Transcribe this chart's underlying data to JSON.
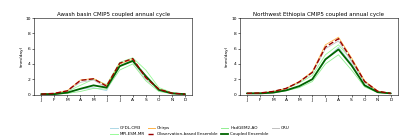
{
  "title_left": "Awash basin CMIP5 coupled annual cycle",
  "title_right": "Northwest Ethiopia CMIP5 coupled annual cycle",
  "ylabel": "(mm/day)",
  "months": [
    "J",
    "F",
    "M",
    "A",
    "M",
    "J",
    "J",
    "A",
    "S",
    "O",
    "N",
    "D"
  ],
  "ylim": [
    0,
    10
  ],
  "yticks": [
    0,
    2,
    4,
    6,
    8,
    10
  ],
  "awash": {
    "GFDL_CM3": [
      0.05,
      0.05,
      0.2,
      0.7,
      0.9,
      0.5,
      3.8,
      4.5,
      2.5,
      0.6,
      0.15,
      0.05
    ],
    "HadGEM2_AO": [
      0.05,
      0.05,
      0.15,
      0.4,
      0.8,
      0.7,
      3.2,
      4.0,
      1.8,
      0.4,
      0.1,
      0.05
    ],
    "MPI_ESM_MR": [
      0.05,
      0.1,
      0.4,
      1.2,
      2.0,
      1.3,
      4.2,
      4.8,
      3.2,
      0.9,
      0.25,
      0.05
    ],
    "Coupled_Ensemble": [
      0.05,
      0.05,
      0.25,
      0.75,
      1.2,
      0.9,
      3.7,
      4.4,
      2.4,
      0.6,
      0.15,
      0.05
    ],
    "Chirps": [
      0.05,
      0.15,
      0.5,
      1.9,
      2.1,
      1.2,
      4.0,
      4.6,
      2.3,
      0.7,
      0.18,
      0.05
    ],
    "CRU": [
      0.05,
      0.15,
      0.45,
      1.6,
      1.9,
      0.9,
      3.8,
      4.3,
      2.0,
      0.65,
      0.15,
      0.05
    ],
    "Obs_Ensemble": [
      0.05,
      0.15,
      0.48,
      1.85,
      2.05,
      1.1,
      4.1,
      4.7,
      2.2,
      0.7,
      0.17,
      0.05
    ]
  },
  "northwest": {
    "GFDL_CM3": [
      0.15,
      0.15,
      0.2,
      0.5,
      1.0,
      2.0,
      4.5,
      6.2,
      4.0,
      1.2,
      0.3,
      0.15
    ],
    "HadGEM2_AO": [
      0.15,
      0.15,
      0.25,
      0.5,
      0.9,
      1.7,
      4.0,
      5.2,
      3.2,
      1.0,
      0.25,
      0.15
    ],
    "MPI_ESM_MR": [
      0.15,
      0.2,
      0.4,
      0.8,
      1.5,
      2.5,
      5.2,
      6.5,
      4.5,
      1.6,
      0.4,
      0.15
    ],
    "Coupled_Ensemble": [
      0.15,
      0.15,
      0.25,
      0.55,
      1.1,
      2.0,
      4.6,
      5.9,
      3.8,
      1.2,
      0.3,
      0.15
    ],
    "Chirps": [
      0.15,
      0.2,
      0.4,
      0.8,
      1.7,
      3.0,
      6.5,
      7.5,
      4.8,
      1.8,
      0.45,
      0.15
    ],
    "CRU": [
      0.15,
      0.2,
      0.4,
      0.8,
      1.6,
      2.8,
      6.0,
      7.0,
      4.3,
      1.6,
      0.38,
      0.15
    ],
    "Obs_Ensemble": [
      0.15,
      0.2,
      0.4,
      0.8,
      1.65,
      2.9,
      6.2,
      7.3,
      4.6,
      1.7,
      0.42,
      0.15
    ]
  },
  "colors": {
    "GFDL_CM3": "#ADD8E6",
    "HadGEM2_AO": "#90EE90",
    "MPI_ESM_MR": "#98FB98",
    "Coupled_Ensemble": "#006400",
    "Chirps": "#FFB347",
    "CRU": "#C0C0C0",
    "Obs_Ensemble": "#990000"
  },
  "line_widths": {
    "GFDL_CM3": 0.6,
    "HadGEM2_AO": 0.6,
    "MPI_ESM_MR": 0.6,
    "Coupled_Ensemble": 1.3,
    "Chirps": 0.6,
    "CRU": 0.6,
    "Obs_Ensemble": 1.0
  },
  "legend_row1": [
    {
      "label": "GFDL-CM3",
      "color": "#ADD8E6",
      "style": "solid",
      "lw": 0.7
    },
    {
      "label": "MPI-ESM-MR",
      "color": "#98FB98",
      "style": "solid",
      "lw": 0.7
    },
    {
      "label": "Chirps",
      "color": "#FFB347",
      "style": "solid",
      "lw": 0.7
    },
    {
      "label": "Observation-based Ensemble",
      "color": "#990000",
      "style": "dashed",
      "lw": 1.0
    }
  ],
  "legend_row2": [
    {
      "label": "HadGEM2-AO",
      "color": "#90EE90",
      "style": "solid",
      "lw": 0.7
    },
    {
      "label": "Coupled Ensemble",
      "color": "#006400",
      "style": "solid",
      "lw": 1.3
    },
    {
      "label": "CRU",
      "color": "#C0C0C0",
      "style": "solid",
      "lw": 0.7
    }
  ]
}
